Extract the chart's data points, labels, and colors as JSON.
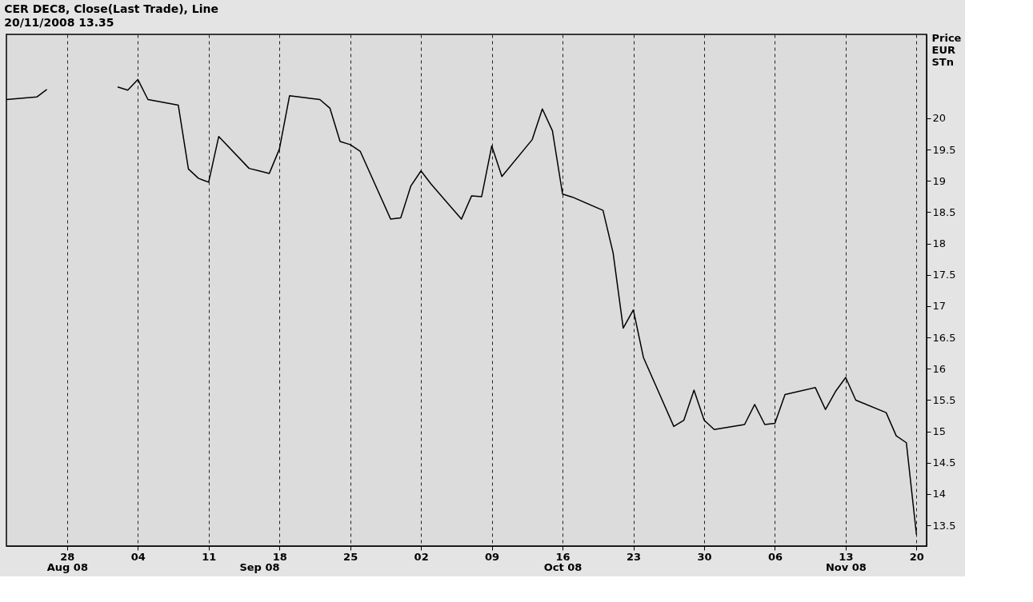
{
  "chart_data": {
    "type": "line",
    "title": "CER DEC8, Close(Last Trade), Line",
    "subtitle": "20/11/2008 13.35",
    "ylabel": "Price EUR STn",
    "x": [
      "2008-08-22",
      "2008-08-25",
      "2008-08-26",
      "2008-08-27",
      "2008-08-28",
      "2008-08-29",
      "2008-09-01",
      "2008-09-02",
      "2008-09-03",
      "2008-09-04",
      "2008-09-05",
      "2008-09-08",
      "2008-09-09",
      "2008-09-10",
      "2008-09-11",
      "2008-09-12",
      "2008-09-15",
      "2008-09-16",
      "2008-09-17",
      "2008-09-18",
      "2008-09-19",
      "2008-09-22",
      "2008-09-23",
      "2008-09-24",
      "2008-09-25",
      "2008-09-26",
      "2008-09-29",
      "2008-09-30",
      "2008-10-01",
      "2008-10-02",
      "2008-10-03",
      "2008-10-06",
      "2008-10-07",
      "2008-10-08",
      "2008-10-09",
      "2008-10-10",
      "2008-10-13",
      "2008-10-14",
      "2008-10-15",
      "2008-10-16",
      "2008-10-17",
      "2008-10-20",
      "2008-10-21",
      "2008-10-22",
      "2008-10-23",
      "2008-10-24",
      "2008-10-27",
      "2008-10-28",
      "2008-10-29",
      "2008-10-30",
      "2008-10-31",
      "2008-11-03",
      "2008-11-04",
      "2008-11-05",
      "2008-11-06",
      "2008-11-07",
      "2008-11-10",
      "2008-11-11",
      "2008-11-12",
      "2008-11-13",
      "2008-11-14",
      "2008-11-17",
      "2008-11-18",
      "2008-11-19",
      "2008-11-20"
    ],
    "series": [
      {
        "color": "#000000",
        "values": [
          20.3,
          20.34,
          20.46,
          null,
          null,
          null,
          null,
          20.5,
          20.45,
          20.62,
          20.3,
          20.21,
          19.19,
          19.04,
          18.98,
          19.71,
          19.2,
          19.16,
          19.12,
          19.51,
          20.36,
          20.3,
          20.16,
          19.63,
          19.58,
          19.47,
          18.39,
          18.41,
          18.92,
          19.16,
          18.95,
          18.39,
          18.76,
          18.75,
          19.56,
          19.07,
          19.66,
          20.15,
          19.8,
          18.79,
          18.74,
          18.53,
          17.85,
          16.65,
          16.94,
          16.18,
          15.08,
          15.18,
          15.66,
          15.18,
          15.03,
          15.11,
          15.43,
          15.11,
          15.13,
          15.59,
          15.7,
          15.35,
          15.64,
          15.86,
          15.5,
          15.3,
          14.93,
          14.82,
          13.35
        ]
      }
    ],
    "xlim": [
      "2008-08-22",
      "2008-11-21"
    ],
    "xticks": [
      {
        "value": "2008-08-28",
        "label": "28"
      },
      {
        "value": "2008-09-04",
        "label": "04"
      },
      {
        "value": "2008-09-11",
        "label": "11"
      },
      {
        "value": "2008-09-18",
        "label": "18"
      },
      {
        "value": "2008-09-25",
        "label": "25"
      },
      {
        "value": "2008-10-02",
        "label": "02"
      },
      {
        "value": "2008-10-09",
        "label": "09"
      },
      {
        "value": "2008-10-16",
        "label": "16"
      },
      {
        "value": "2008-10-23",
        "label": "23"
      },
      {
        "value": "2008-10-30",
        "label": "30"
      },
      {
        "value": "2008-11-06",
        "label": "06"
      },
      {
        "value": "2008-11-13",
        "label": "13"
      },
      {
        "value": "2008-11-20",
        "label": "20"
      }
    ],
    "x2lim": [
      "2008-08-22",
      "2008-11-21"
    ],
    "x2ticks": [
      {
        "value": "2008-08-28",
        "label": "Aug 08"
      },
      {
        "value": "2008-09-16",
        "label": "Sep 08"
      },
      {
        "value": "2008-10-16",
        "label": "Oct 08"
      },
      {
        "value": "2008-11-13",
        "label": "Nov 08"
      }
    ],
    "ylim": [
      13.17,
      21.34
    ],
    "yticks": [
      13.5,
      14,
      14.5,
      15,
      15.5,
      16,
      16.5,
      17,
      17.5,
      18,
      18.5,
      19,
      19.5,
      20
    ],
    "grid": "x",
    "marker": "none",
    "line_style": "solid"
  }
}
